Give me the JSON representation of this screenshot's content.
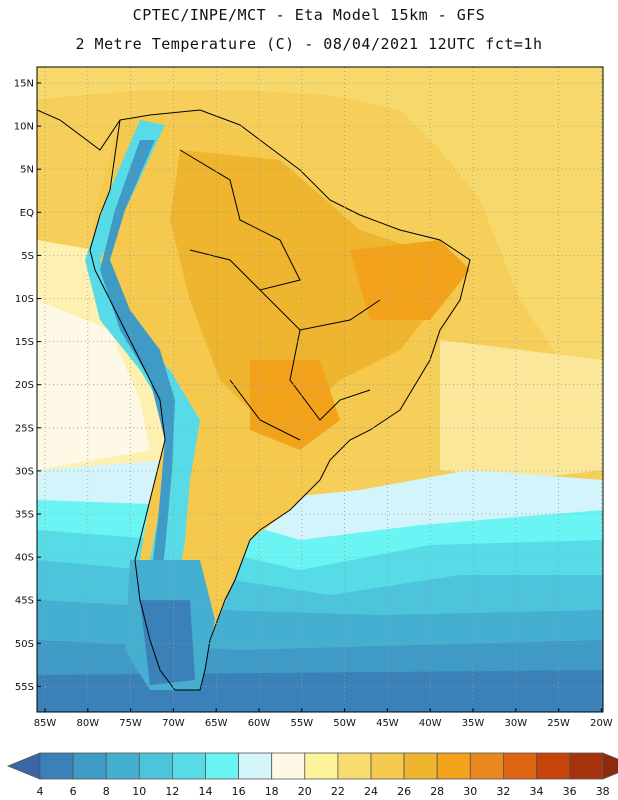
{
  "header": {
    "line1": "CPTEC/INPE/MCT -  Eta Model 15km - GFS",
    "line2": "2 Metre Temperature (C) - 08/04/2021 12UTC fct=1h"
  },
  "axes": {
    "lat_labels": [
      "15N",
      "10N",
      "5N",
      "EQ",
      "5S",
      "10S",
      "15S",
      "20S",
      "25S",
      "30S",
      "35S",
      "40S",
      "45S",
      "50S",
      "55S"
    ],
    "lon_labels": [
      "85W",
      "80W",
      "75W",
      "70W",
      "65W",
      "60W",
      "55W",
      "50W",
      "45W",
      "40W",
      "35W",
      "30W",
      "25W",
      "20W"
    ]
  },
  "legend": {
    "levels": [
      "4",
      "6",
      "8",
      "10",
      "12",
      "14",
      "16",
      "18",
      "20",
      "22",
      "24",
      "26",
      "28",
      "30",
      "32",
      "34",
      "36",
      "38"
    ],
    "colors": [
      "#3b66a6",
      "#3a80b9",
      "#3f9bc6",
      "#45afd2",
      "#4cc4dc",
      "#57dbe7",
      "#6af4f4",
      "#d4f4fb",
      "#fef8e6",
      "#fdf39a",
      "#f9dc6f",
      "#f4c94d",
      "#efb52f",
      "#f2a21b",
      "#ea881f",
      "#dd6511",
      "#c8430a",
      "#a6330d",
      "#8f2a0b"
    ]
  }
}
